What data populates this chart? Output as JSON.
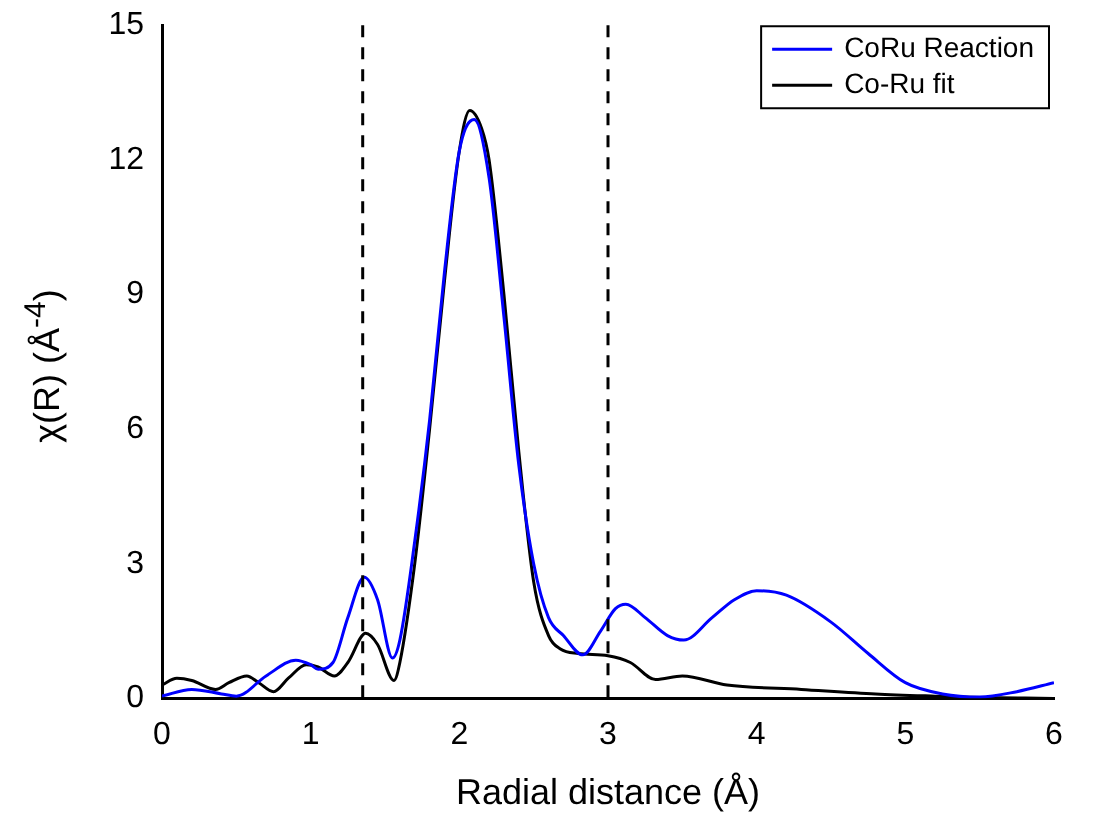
{
  "chart_data": {
    "type": "line",
    "xlabel": "Radial distance (Å)",
    "ylabel": "χ(R) (Å$^{-4}$)",
    "xlim": [
      0,
      6
    ],
    "ylim": [
      0,
      15
    ],
    "xticks": [
      0,
      1,
      2,
      3,
      4,
      5,
      6
    ],
    "yticks": [
      0,
      3,
      6,
      9,
      12,
      15
    ],
    "grid": false,
    "legend": "top right",
    "marker": "none",
    "line_style": "solid",
    "series": [
      {
        "name": "CoRu Reaction",
        "color": "#0000ff",
        "x": [
          0,
          0.2,
          0.4,
          0.5,
          0.7,
          0.9,
          1.0,
          1.05,
          1.15,
          1.25,
          1.36,
          1.45,
          1.55,
          1.6,
          1.7,
          1.8,
          1.9,
          2.0,
          2.1,
          2.2,
          2.3,
          2.4,
          2.5,
          2.6,
          2.7,
          2.83,
          2.95,
          3.05,
          3.12,
          3.25,
          3.4,
          3.51,
          3.7,
          3.85,
          4.0,
          4.2,
          4.5,
          4.75,
          5.0,
          5.25,
          5.5,
          5.75,
          6.0
        ],
        "values": [
          0.05,
          0.2,
          0.1,
          0.05,
          0.5,
          0.85,
          0.75,
          0.65,
          0.8,
          1.8,
          2.7,
          2.2,
          0.9,
          1.3,
          3.5,
          6.2,
          9.5,
          12.2,
          12.9,
          11.6,
          8.5,
          5.2,
          3.0,
          1.8,
          1.4,
          0.97,
          1.5,
          2.0,
          2.1,
          1.8,
          1.4,
          1.3,
          1.8,
          2.2,
          2.4,
          2.3,
          1.7,
          1.0,
          0.35,
          0.1,
          0.03,
          0.15,
          0.35
        ]
      },
      {
        "name": "Co-Ru fit",
        "color": "#000000",
        "x": [
          0,
          0.1,
          0.2,
          0.36,
          0.45,
          0.57,
          0.65,
          0.75,
          0.85,
          0.97,
          1.05,
          1.16,
          1.25,
          1.37,
          1.45,
          1.56,
          1.6,
          1.7,
          1.8,
          1.9,
          2.0,
          2.07,
          2.15,
          2.2,
          2.3,
          2.4,
          2.5,
          2.6,
          2.68,
          2.8,
          3.0,
          3.15,
          3.32,
          3.5,
          3.8,
          4.3,
          4.8,
          5.2,
          5.5,
          6.0
        ],
        "values": [
          0.3,
          0.45,
          0.4,
          0.2,
          0.35,
          0.5,
          0.35,
          0.15,
          0.45,
          0.75,
          0.7,
          0.5,
          0.8,
          1.45,
          1.2,
          0.4,
          0.8,
          3.0,
          6.0,
          9.3,
          12.2,
          13.1,
          12.7,
          12.0,
          9.0,
          5.5,
          2.6,
          1.4,
          1.1,
          1.0,
          0.95,
          0.8,
          0.42,
          0.5,
          0.3,
          0.2,
          0.1,
          0.05,
          0.02,
          0
        ]
      }
    ],
    "ref_lines": [
      {
        "axis": "x",
        "value": 1.35,
        "color": "#000000",
        "line_style": "dashed"
      },
      {
        "axis": "x",
        "value": 3.0,
        "color": "#000000",
        "line_style": "dashed"
      }
    ]
  }
}
